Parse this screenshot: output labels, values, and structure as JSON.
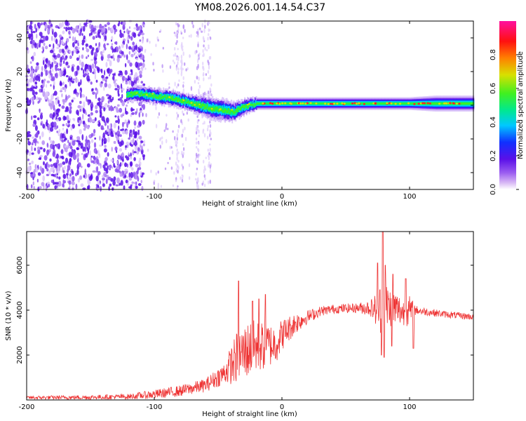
{
  "title": "YM08.2026.001.14.54.C37",
  "chart_data": [
    {
      "type": "heatmap",
      "name": "spectrogram",
      "xlabel": "Height of straight line (km)",
      "ylabel": "Frequency (Hz)",
      "xlim": [
        -200,
        150
      ],
      "ylim": [
        -50,
        50
      ],
      "x_ticks": [
        -200,
        -100,
        0,
        100
      ],
      "y_ticks": [
        -40,
        -20,
        0,
        20,
        40
      ],
      "noise_region_x": [
        -200,
        -108
      ],
      "sparse_noise_x": [
        -108,
        -55
      ],
      "ridge": {
        "x": [
          -122,
          -115,
          -105,
          -95,
          -85,
          -75,
          -65,
          -55,
          -45,
          -38,
          -30,
          -20,
          -10,
          0,
          20,
          50,
          80,
          100,
          120,
          150
        ],
        "freq": [
          6,
          7,
          6,
          5,
          4,
          2,
          0,
          -2,
          -3,
          -4,
          -1,
          1,
          1,
          1,
          1,
          1,
          1,
          1,
          1,
          1
        ],
        "width": [
          4,
          5,
          5,
          5,
          5,
          5,
          6,
          7,
          7,
          6,
          5,
          4,
          4,
          4,
          4,
          4,
          4,
          4,
          5,
          5
        ]
      },
      "colorbar": {
        "label": "Normalized spectral amplitude",
        "ticks": [
          0.0,
          0.2,
          0.4,
          0.6,
          0.8
        ],
        "range": [
          0,
          1
        ]
      }
    },
    {
      "type": "line",
      "name": "snr",
      "xlabel": "Height of straight line (km)",
      "ylabel": "SNR (10 * v/v)",
      "xlim": [
        -200,
        150
      ],
      "ylim": [
        0,
        7500
      ],
      "x_ticks": [
        -200,
        -100,
        0,
        100
      ],
      "y_ticks": [
        2000,
        4000,
        6000
      ],
      "color": "#ee3333",
      "envelope": {
        "x": [
          -200,
          -150,
          -120,
          -100,
          -80,
          -60,
          -45,
          -35,
          -25,
          -15,
          -5,
          0,
          10,
          20,
          30,
          40,
          60,
          70,
          75,
          80,
          85,
          90,
          95,
          100,
          105,
          110,
          130,
          150
        ],
        "mean": [
          100,
          120,
          150,
          250,
          400,
          650,
          1200,
          1900,
          2300,
          2400,
          2500,
          2900,
          3400,
          3700,
          3950,
          4050,
          4100,
          4100,
          4000,
          4200,
          4150,
          4050,
          3900,
          3950,
          4000,
          3950,
          3800,
          3700
        ],
        "amp": [
          80,
          100,
          120,
          200,
          250,
          300,
          500,
          1200,
          1300,
          1100,
          900,
          700,
          500,
          300,
          220,
          200,
          220,
          400,
          900,
          1400,
          900,
          800,
          600,
          700,
          200,
          180,
          150,
          150
        ]
      },
      "peaks": [
        {
          "x": -37,
          "y": 2100
        },
        {
          "x": -34,
          "y": 5300
        },
        {
          "x": -23,
          "y": 4400
        },
        {
          "x": -18,
          "y": 4500
        },
        {
          "x": -13,
          "y": 4700
        },
        {
          "x": 75,
          "y": 6100
        },
        {
          "x": 79,
          "y": 7500
        },
        {
          "x": 81,
          "y": 6000
        },
        {
          "x": 87,
          "y": 5600
        },
        {
          "x": 97,
          "y": 5400
        },
        {
          "x": 103,
          "y": 5400
        }
      ],
      "dips": [
        {
          "x": 80,
          "y": 1900
        },
        {
          "x": 78,
          "y": 2000
        },
        {
          "x": 86,
          "y": 2400
        },
        {
          "x": 103,
          "y": 2300
        }
      ]
    }
  ]
}
